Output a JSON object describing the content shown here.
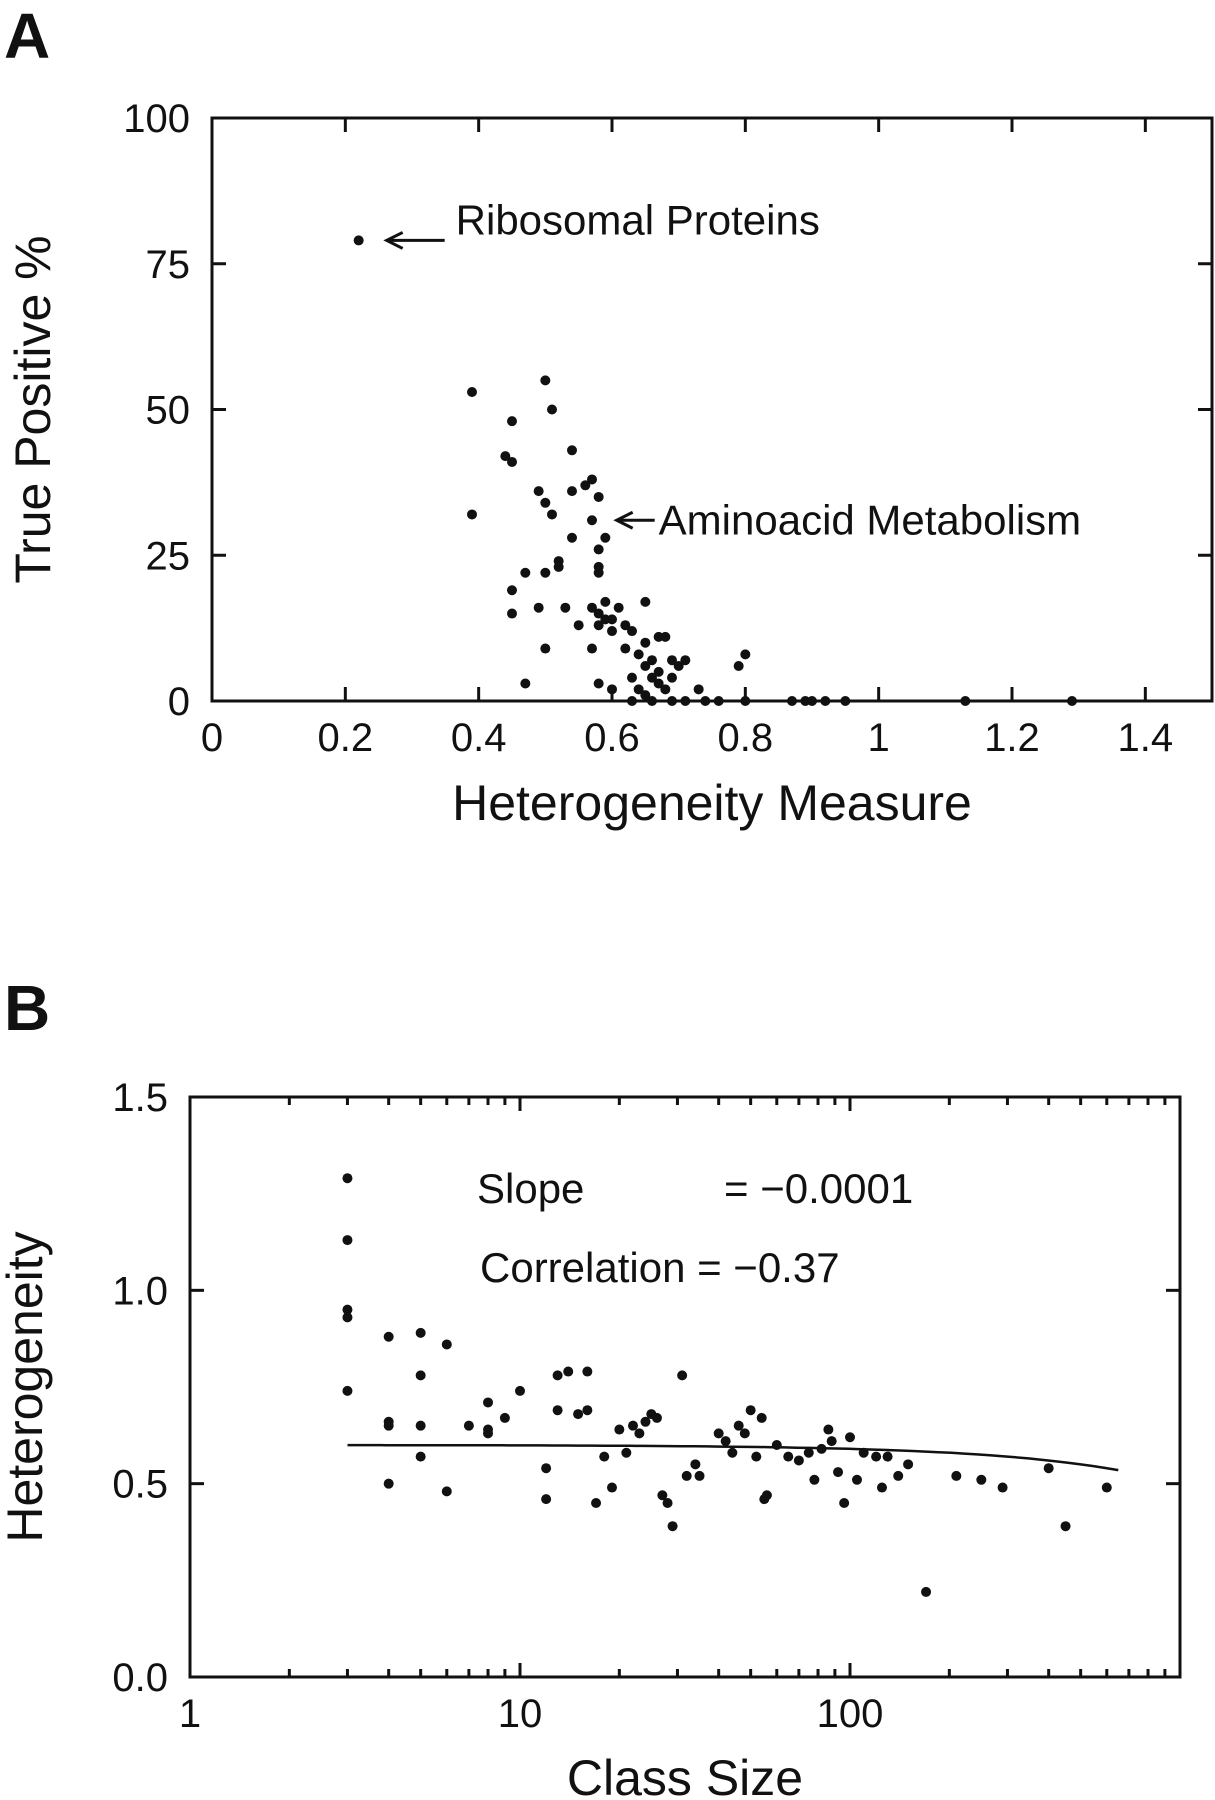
{
  "chart_data": [
    {
      "panel": "A",
      "type": "scatter",
      "xlabel": "Heterogeneity Measure",
      "ylabel": "True Positive %",
      "xlim": [
        0,
        1.5
      ],
      "ylim": [
        0,
        100
      ],
      "xticks": [
        "0",
        "0.2",
        "0.4",
        "0.6",
        "0.8",
        "1",
        "1.2",
        "1.4"
      ],
      "xtick_values": [
        0,
        0.2,
        0.4,
        0.6,
        0.8,
        1.0,
        1.2,
        1.4
      ],
      "yticks": [
        "0",
        "25",
        "50",
        "75",
        "100"
      ],
      "ytick_values": [
        0,
        25,
        50,
        75,
        100
      ],
      "grid": false,
      "annotations": [
        {
          "text": "Ribosomal Proteins",
          "x": 0.22,
          "y": 79
        },
        {
          "text": "Aminoacid Metabolism",
          "x": 0.58,
          "y": 31
        }
      ],
      "points": [
        [
          0.22,
          79
        ],
        [
          0.39,
          53
        ],
        [
          0.39,
          32
        ],
        [
          0.45,
          48
        ],
        [
          0.44,
          42
        ],
        [
          0.45,
          41
        ],
        [
          0.45,
          19
        ],
        [
          0.45,
          15
        ],
        [
          0.47,
          22
        ],
        [
          0.47,
          3
        ],
        [
          0.49,
          36
        ],
        [
          0.49,
          16
        ],
        [
          0.5,
          55
        ],
        [
          0.51,
          50
        ],
        [
          0.5,
          34
        ],
        [
          0.5,
          22
        ],
        [
          0.5,
          9
        ],
        [
          0.51,
          32
        ],
        [
          0.52,
          24
        ],
        [
          0.52,
          23
        ],
        [
          0.53,
          16
        ],
        [
          0.54,
          43
        ],
        [
          0.54,
          36
        ],
        [
          0.54,
          28
        ],
        [
          0.55,
          13
        ],
        [
          0.56,
          37
        ],
        [
          0.57,
          38
        ],
        [
          0.57,
          31
        ],
        [
          0.57,
          16
        ],
        [
          0.57,
          9
        ],
        [
          0.58,
          35
        ],
        [
          0.58,
          26
        ],
        [
          0.58,
          23
        ],
        [
          0.58,
          22
        ],
        [
          0.58,
          15
        ],
        [
          0.58,
          13
        ],
        [
          0.58,
          3
        ],
        [
          0.59,
          28
        ],
        [
          0.59,
          17
        ],
        [
          0.59,
          14
        ],
        [
          0.6,
          14
        ],
        [
          0.6,
          12
        ],
        [
          0.6,
          2
        ],
        [
          0.61,
          16
        ],
        [
          0.62,
          13
        ],
        [
          0.62,
          9
        ],
        [
          0.63,
          12
        ],
        [
          0.63,
          4
        ],
        [
          0.63,
          0
        ],
        [
          0.64,
          8
        ],
        [
          0.64,
          2
        ],
        [
          0.65,
          17
        ],
        [
          0.65,
          10
        ],
        [
          0.65,
          6
        ],
        [
          0.65,
          1
        ],
        [
          0.66,
          7
        ],
        [
          0.66,
          4
        ],
        [
          0.66,
          0
        ],
        [
          0.67,
          11
        ],
        [
          0.67,
          5
        ],
        [
          0.67,
          3
        ],
        [
          0.68,
          11
        ],
        [
          0.68,
          2
        ],
        [
          0.69,
          7
        ],
        [
          0.69,
          4
        ],
        [
          0.69,
          0
        ],
        [
          0.7,
          6
        ],
        [
          0.71,
          7
        ],
        [
          0.71,
          0
        ],
        [
          0.73,
          2
        ],
        [
          0.74,
          0
        ],
        [
          0.76,
          0
        ],
        [
          0.79,
          6
        ],
        [
          0.8,
          8
        ],
        [
          0.8,
          0
        ],
        [
          0.87,
          0
        ],
        [
          0.89,
          0
        ],
        [
          0.9,
          0
        ],
        [
          0.92,
          0
        ],
        [
          0.95,
          0
        ],
        [
          1.13,
          0
        ],
        [
          1.29,
          0
        ]
      ]
    },
    {
      "panel": "B",
      "type": "scatter",
      "xlabel": "Class Size",
      "ylabel": "Heterogeneity",
      "xscale": "log",
      "xlim": [
        1,
        1000
      ],
      "ylim": [
        0,
        1.5
      ],
      "xticks": [
        "1",
        "10",
        "100"
      ],
      "xtick_values": [
        1,
        10,
        100
      ],
      "yticks": [
        "0.0",
        "0.5",
        "1.0",
        "1.5"
      ],
      "ytick_values": [
        0,
        0.5,
        1.0,
        1.5
      ],
      "grid": false,
      "stats": {
        "slope_label": "Slope",
        "slope_value": "= −0.0001",
        "correlation_text": "Correlation = −0.37"
      },
      "fit_line": {
        "slope": -0.0001,
        "intercept": 0.6,
        "x_range": [
          3,
          650
        ]
      },
      "points": [
        [
          3,
          1.29
        ],
        [
          3,
          1.13
        ],
        [
          3,
          0.95
        ],
        [
          3,
          0.93
        ],
        [
          3,
          0.74
        ],
        [
          4,
          0.88
        ],
        [
          4,
          0.66
        ],
        [
          4,
          0.65
        ],
        [
          4,
          0.5
        ],
        [
          5,
          0.89
        ],
        [
          5,
          0.78
        ],
        [
          5,
          0.65
        ],
        [
          5,
          0.57
        ],
        [
          6,
          0.86
        ],
        [
          6,
          0.48
        ],
        [
          7,
          0.65
        ],
        [
          8,
          0.71
        ],
        [
          8,
          0.64
        ],
        [
          8,
          0.63
        ],
        [
          9,
          0.67
        ],
        [
          10,
          0.74
        ],
        [
          12,
          0.54
        ],
        [
          12,
          0.46
        ],
        [
          13,
          0.78
        ],
        [
          13,
          0.69
        ],
        [
          14,
          0.79
        ],
        [
          15,
          0.68
        ],
        [
          16,
          0.79
        ],
        [
          16,
          0.69
        ],
        [
          17,
          0.45
        ],
        [
          18,
          0.57
        ],
        [
          19,
          0.49
        ],
        [
          20,
          0.64
        ],
        [
          21,
          0.58
        ],
        [
          22,
          0.65
        ],
        [
          23,
          0.63
        ],
        [
          24,
          0.66
        ],
        [
          25,
          0.68
        ],
        [
          26,
          0.67
        ],
        [
          27,
          0.47
        ],
        [
          28,
          0.45
        ],
        [
          29,
          0.39
        ],
        [
          31,
          0.78
        ],
        [
          32,
          0.52
        ],
        [
          34,
          0.55
        ],
        [
          35,
          0.52
        ],
        [
          40,
          0.63
        ],
        [
          42,
          0.61
        ],
        [
          44,
          0.58
        ],
        [
          46,
          0.65
        ],
        [
          48,
          0.63
        ],
        [
          50,
          0.69
        ],
        [
          52,
          0.57
        ],
        [
          54,
          0.67
        ],
        [
          55,
          0.46
        ],
        [
          56,
          0.47
        ],
        [
          60,
          0.6
        ],
        [
          65,
          0.57
        ],
        [
          70,
          0.56
        ],
        [
          75,
          0.58
        ],
        [
          78,
          0.51
        ],
        [
          82,
          0.59
        ],
        [
          86,
          0.64
        ],
        [
          88,
          0.61
        ],
        [
          92,
          0.53
        ],
        [
          96,
          0.45
        ],
        [
          100,
          0.62
        ],
        [
          105,
          0.51
        ],
        [
          110,
          0.58
        ],
        [
          120,
          0.57
        ],
        [
          125,
          0.49
        ],
        [
          130,
          0.57
        ],
        [
          140,
          0.52
        ],
        [
          150,
          0.55
        ],
        [
          170,
          0.22
        ],
        [
          210,
          0.52
        ],
        [
          250,
          0.51
        ],
        [
          290,
          0.49
        ],
        [
          400,
          0.54
        ],
        [
          450,
          0.39
        ],
        [
          600,
          0.49
        ]
      ]
    }
  ]
}
